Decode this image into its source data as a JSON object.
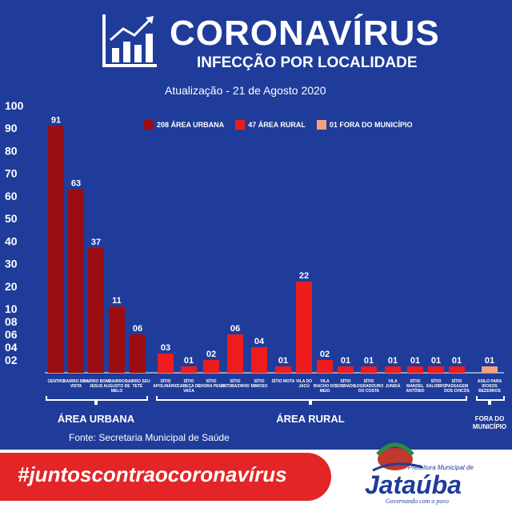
{
  "header": {
    "title": "CORONAVÍRUS",
    "subtitle": "INFECÇÃO POR LOCALIDADE",
    "update": "Atualização - 21 de Agosto 2020"
  },
  "legend": {
    "urbana": "208 ÁREA URBANA",
    "rural": "47 ÁREA RURAL",
    "fora": "01 FORA DO MUNICÍPIO"
  },
  "colors": {
    "background": "#1f3c9a",
    "urbana": "#9a0e12",
    "rural": "#ee1c1c",
    "fora": "#f4a07c",
    "hashtag_band": "#e32527"
  },
  "chart_data": {
    "type": "bar",
    "yticks": [
      "02",
      "04",
      "06",
      "08",
      "10",
      "20",
      "30",
      "40",
      "50",
      "60",
      "70",
      "80",
      "90",
      "100"
    ],
    "groups": [
      {
        "label": "ÁREA URBANA",
        "category": "urbana"
      },
      {
        "label": "ÁREA RURAL",
        "category": "rural"
      },
      {
        "label": "FORA DO MUNICÍPIO",
        "category": "fora"
      }
    ],
    "bars": [
      {
        "label": "CENTRO",
        "value": 91,
        "display": "91",
        "category": "urbana"
      },
      {
        "label": "BAIRRO BOA VISTA",
        "value": 63,
        "display": "63",
        "category": "urbana"
      },
      {
        "label": "BAIRRO BOM JESUS",
        "value": 37,
        "display": "37",
        "category": "urbana"
      },
      {
        "label": "BAIRRO AUGUSTO DE MELO",
        "value": 11,
        "display": "11",
        "category": "urbana"
      },
      {
        "label": "BAIRRO SEU TETÉ",
        "value": 6,
        "display": "06",
        "category": "urbana"
      },
      {
        "label": "SÍTIO APOLINÁRIO",
        "value": 3,
        "display": "03",
        "category": "rural"
      },
      {
        "label": "SÍTIO CABEÇA DE VACA",
        "value": 1,
        "display": "01",
        "category": "rural"
      },
      {
        "label": "SÍTIO CHORA PENA",
        "value": 2,
        "display": "02",
        "category": "rural"
      },
      {
        "label": "SÍTIO JATOBAZINHO",
        "value": 6,
        "display": "06",
        "category": "rural"
      },
      {
        "label": "SÍTIO MIMOSO",
        "value": 4,
        "display": "04",
        "category": "rural"
      },
      {
        "label": "SÍTIO MOTA",
        "value": 1,
        "display": "01",
        "category": "rural"
      },
      {
        "label": "VILA DO JACÚ",
        "value": 22,
        "display": "22",
        "category": "rural"
      },
      {
        "label": "VILA RIACHO DO MEIO",
        "value": 2,
        "display": "02",
        "category": "rural"
      },
      {
        "label": "SÍTIO SOBRADO",
        "value": 1,
        "display": "01",
        "category": "rural"
      },
      {
        "label": "SÍTIO LOGRADOURO DO COSTA",
        "value": 1,
        "display": "01",
        "category": "rural"
      },
      {
        "label": "VILA JUNDIÁ",
        "value": 1,
        "display": "01",
        "category": "rural"
      },
      {
        "label": "SÍTIO MANOEL ANTÔNIO",
        "value": 1,
        "display": "01",
        "category": "rural"
      },
      {
        "label": "SÍTIO SALOBRO",
        "value": 1,
        "display": "01",
        "category": "rural"
      },
      {
        "label": "SÍTIO PASSAGEM DOS CHICÓS",
        "value": 1,
        "display": "01",
        "category": "rural"
      },
      {
        "label": "ASILO PARA IDOSOS BEZERROS",
        "value": 1,
        "display": "01",
        "category": "fora"
      }
    ]
  },
  "source": "Fonte: Secretaria Municipal de Saúde",
  "footer": {
    "hashtag": "#juntoscontraocoronavírus",
    "logo_small": "Prefeitura Municipal de",
    "logo_name": "Jataúba",
    "logo_tagline": "Governando com o povo"
  }
}
